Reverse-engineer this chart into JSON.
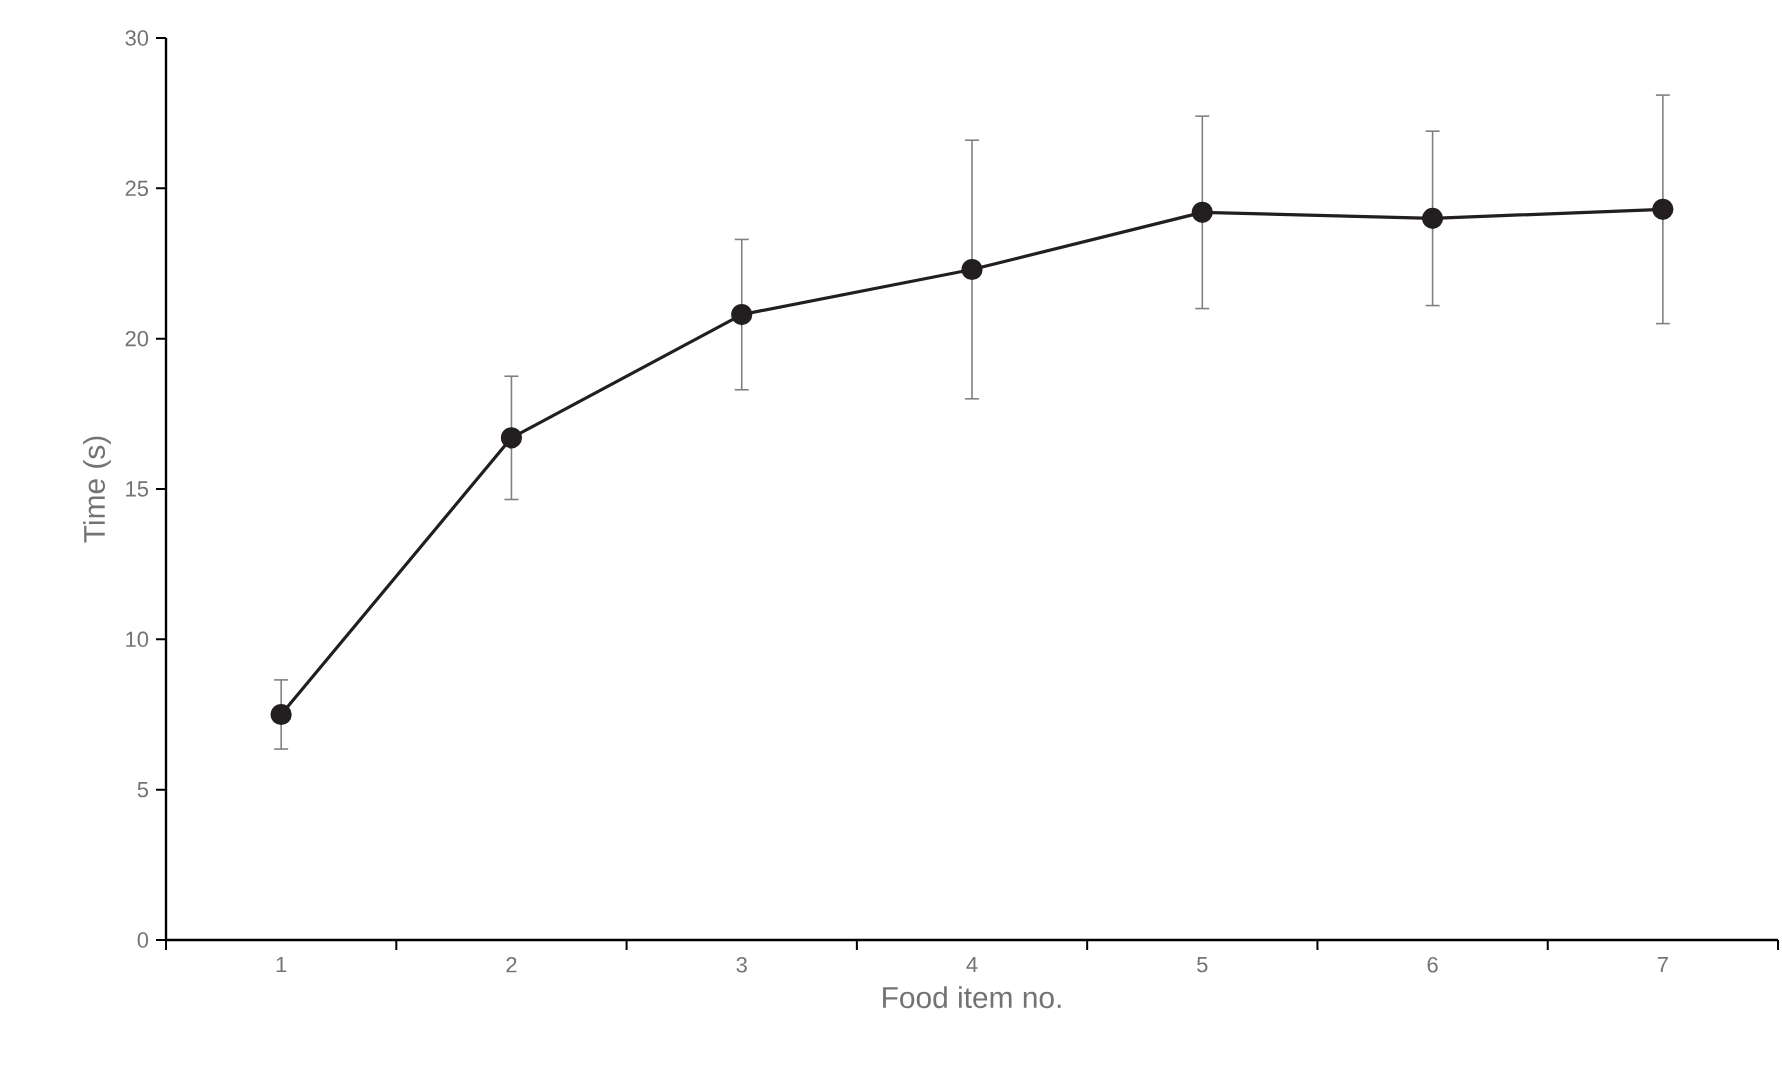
{
  "chart_data": {
    "type": "line",
    "xlabel": "Food item no.",
    "ylabel": "Time (s)",
    "categories": [
      "1",
      "2",
      "3",
      "4",
      "5",
      "6",
      "7"
    ],
    "series": [
      {
        "color": "#231f20",
        "values": [
          7.5,
          16.7,
          20.8,
          22.3,
          24.2,
          24.0,
          24.3
        ],
        "errors": [
          1.15,
          2.05,
          2.5,
          4.3,
          3.2,
          2.9,
          3.8
        ]
      }
    ],
    "ylim": [
      0,
      30
    ],
    "yticks": [
      0,
      5,
      10,
      15,
      20,
      25,
      30
    ],
    "grid": false,
    "marker": "circle",
    "line_style": "solid"
  }
}
